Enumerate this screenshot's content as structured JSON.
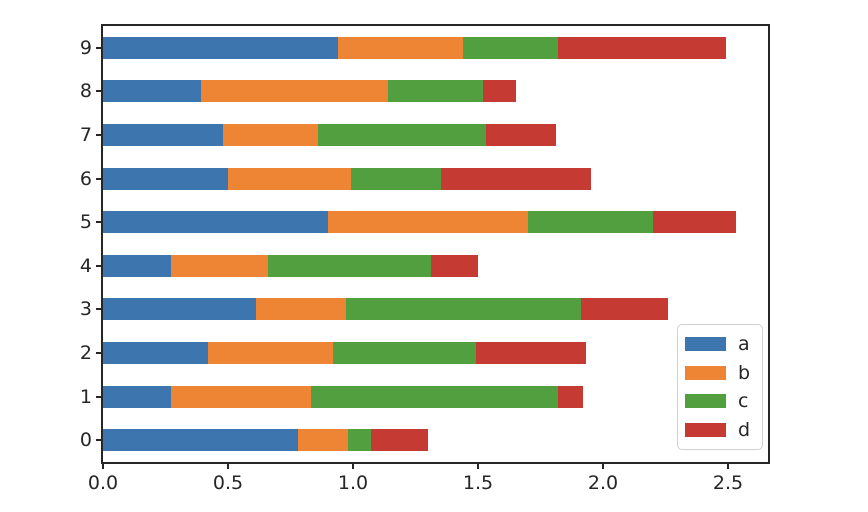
{
  "chart_data": {
    "type": "bar",
    "orientation": "horizontal",
    "stacked": true,
    "title": "",
    "xlabel": "",
    "ylabel": "",
    "categories": [
      "0",
      "1",
      "2",
      "3",
      "4",
      "5",
      "6",
      "7",
      "8",
      "9"
    ],
    "series": [
      {
        "name": "a",
        "color": "#3d76ae",
        "values": [
          0.78,
          0.27,
          0.42,
          0.61,
          0.27,
          0.9,
          0.5,
          0.48,
          0.39,
          0.94
        ]
      },
      {
        "name": "b",
        "color": "#ee8535",
        "values": [
          0.2,
          0.56,
          0.5,
          0.36,
          0.39,
          0.8,
          0.49,
          0.38,
          0.75,
          0.5
        ]
      },
      {
        "name": "c",
        "color": "#529f3f",
        "values": [
          0.09,
          0.99,
          0.57,
          0.94,
          0.65,
          0.5,
          0.36,
          0.67,
          0.38,
          0.38
        ]
      },
      {
        "name": "d",
        "color": "#c53a33",
        "values": [
          0.23,
          0.1,
          0.44,
          0.35,
          0.19,
          0.33,
          0.6,
          0.28,
          0.13,
          0.67
        ]
      }
    ],
    "xlim": [
      0,
      2.66
    ],
    "xticks": [
      "0.0",
      "0.5",
      "1.0",
      "1.5",
      "2.0",
      "2.5"
    ],
    "xtick_values": [
      0,
      0.5,
      1.0,
      1.5,
      2.0,
      2.5
    ],
    "grid": false,
    "legend": {
      "position": "lower right",
      "labels": [
        "a",
        "b",
        "c",
        "d"
      ]
    }
  }
}
